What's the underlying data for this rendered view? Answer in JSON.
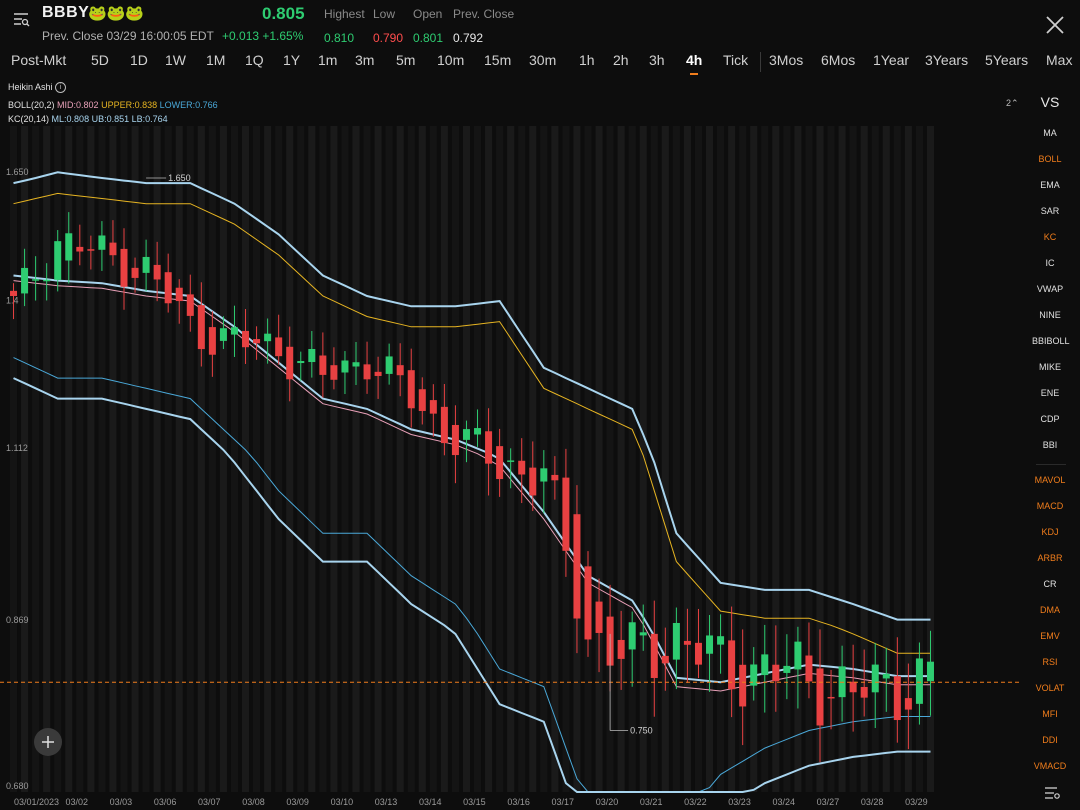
{
  "header": {
    "ticker": "BBBY",
    "emoji": "🐸🐸🐸",
    "price": "0.805",
    "prev_close_line": "Prev. Close 03/29 16:00:05 EDT",
    "change": "+0.013  +1.65%",
    "stats": [
      {
        "label": "Highest",
        "value": "0.810",
        "color": "#2ecc71"
      },
      {
        "label": "Low",
        "value": "0.790",
        "color": "#ff4d4d"
      },
      {
        "label": "Open",
        "value": "0.801",
        "color": "#2ecc71"
      },
      {
        "label": "Prev. Close",
        "value": "0.792",
        "color": "#e8e8e8"
      }
    ]
  },
  "timeframes": {
    "session": "Post-Mkt",
    "items": [
      "5D",
      "1D",
      "1W",
      "1M",
      "1Q",
      "1Y",
      "1m",
      "3m",
      "5m",
      "10m",
      "15m",
      "30m",
      "1h",
      "2h",
      "3h",
      "4h",
      "Tick"
    ],
    "active": "4h",
    "ranges": [
      "3Mos",
      "6Mos",
      "1Year",
      "3Years",
      "5Years",
      "Max"
    ]
  },
  "indicators": {
    "chart_type": "Heikin Ashi",
    "boll_label": "BOLL(20,2)",
    "boll_mid": "MID:0.802",
    "boll_upper": "UPPER:0.838",
    "boll_lower": "LOWER:0.766",
    "kc_label": "KC(20,14)",
    "kc_ml": "ML:0.808",
    "kc_ub": "UB:0.851",
    "kc_lb": "LB:0.764",
    "page_marker": "2"
  },
  "right_panel": {
    "vs": "VS",
    "items": [
      {
        "label": "MA",
        "active": false
      },
      {
        "label": "BOLL",
        "active": true
      },
      {
        "label": "EMA",
        "active": false
      },
      {
        "label": "SAR",
        "active": false
      },
      {
        "label": "KC",
        "active": true
      },
      {
        "label": "IC",
        "active": false
      },
      {
        "label": "VWAP",
        "active": false
      },
      {
        "label": "NINE",
        "active": false
      },
      {
        "label": "BBIBOLL",
        "active": false
      },
      {
        "label": "MIKE",
        "active": false
      },
      {
        "label": "ENE",
        "active": false
      },
      {
        "label": "CDP",
        "active": false
      },
      {
        "label": "BBI",
        "active": false
      }
    ],
    "sub_items": [
      "MAVOL",
      "MACD",
      "KDJ",
      "ARBR",
      "CR",
      "DMA",
      "EMV",
      "RSI",
      "VOLAT",
      "MFI",
      "DDI",
      "VMACD"
    ],
    "sub_white": [
      "CR"
    ]
  },
  "colors": {
    "up": "#2ecc71",
    "down": "#e84142",
    "boll_mid": "#e8a0b8",
    "boll_upper": "#e6b422",
    "boll_lower": "#4aa8d8",
    "kc": "#a8d4ee",
    "accent": "#f07d1c"
  },
  "chart_data": {
    "type": "candlestick",
    "y_ticks": [
      "1.650",
      "1.112",
      "0.869",
      "0.680"
    ],
    "y_tick_values": [
      1.65,
      1.112,
      0.869,
      0.68
    ],
    "extra_tick": "1.4",
    "high_label": "1.650",
    "low_label": "0.750",
    "last_price": 0.805,
    "dates": [
      "03/01/2023",
      "03/02",
      "03/03",
      "03/06",
      "03/07",
      "03/08",
      "03/09",
      "03/10",
      "03/13",
      "03/14",
      "03/15",
      "03/16",
      "03/17",
      "03/20",
      "03/21",
      "03/22",
      "03/23",
      "03/24",
      "03/27",
      "03/28",
      "03/29"
    ],
    "daily_close": [
      1.4,
      1.53,
      1.5,
      1.47,
      1.36,
      1.33,
      1.32,
      1.26,
      1.3,
      1.22,
      1.14,
      1.1,
      1.08,
      0.86,
      0.83,
      0.86,
      0.82,
      0.82,
      0.81,
      0.79,
      0.805
    ],
    "upper_boll": [
      1.6,
      1.62,
      1.61,
      1.6,
      1.6,
      1.56,
      1.5,
      1.42,
      1.38,
      1.36,
      1.36,
      1.37,
      1.24,
      1.2,
      1.16,
      0.96,
      0.89,
      0.88,
      0.88,
      0.86,
      0.838
    ],
    "lower_boll": [
      1.3,
      1.26,
      1.26,
      1.24,
      1.22,
      1.14,
      1.06,
      1.0,
      1.0,
      0.94,
      0.9,
      0.82,
      0.8,
      0.66,
      0.63,
      0.64,
      0.7,
      0.73,
      0.75,
      0.76,
      0.766
    ]
  },
  "footer": {
    "settings_icon": "settings-icon"
  }
}
